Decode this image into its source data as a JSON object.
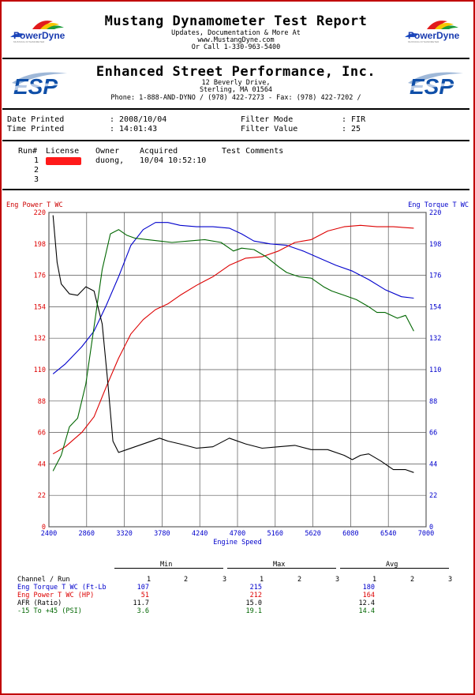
{
  "header": {
    "title": "Mustang Dynamometer Test Report",
    "line1": "Updates, Documentation & More At",
    "line2": "www.MustangDyne.com",
    "line3": "Or Call 1-330-963-5400",
    "logo_text": "PowerDyne"
  },
  "shop": {
    "name": "Enhanced Street Performance, Inc.",
    "address1": "12 Beverly Drive,",
    "address2": "Sterling, MA  01564",
    "phone": "Phone: 1-888-AND-DYNO / (978) 422-7273 - Fax: (978) 422-7202 /",
    "logo_text": "ESP"
  },
  "info": {
    "date_label": "Date Printed",
    "date_value": ": 2008/10/04",
    "time_label": "Time Printed",
    "time_value": ": 14:01:43",
    "filter_mode_label": "Filter Mode",
    "filter_mode_value": ": FIR",
    "filter_value_label": "Filter Value",
    "filter_value_value": ": 25"
  },
  "runs": {
    "headers": [
      "Run#",
      "License",
      "Owner",
      "Acquired",
      "Test Comments"
    ],
    "rows": [
      {
        "run": "1",
        "owner": "duong,",
        "acquired": "10/04 10:52:10"
      },
      {
        "run": "2"
      },
      {
        "run": "3"
      }
    ]
  },
  "chart_data": {
    "type": "line",
    "xlabel": "Engine Speed",
    "ylabel_left": "Eng Power T WC",
    "ylabel_right": "Eng Torque T WC",
    "xlim": [
      2400,
      7000
    ],
    "ylim": [
      0,
      220
    ],
    "x_ticks": [
      2400,
      2860,
      3320,
      3780,
      4240,
      4700,
      5160,
      5620,
      6080,
      6540,
      7000
    ],
    "y_ticks": [
      0,
      22,
      44,
      66,
      88,
      110,
      132,
      154,
      176,
      198,
      220
    ],
    "grid": true,
    "colors": {
      "power": "#dd0000",
      "torque": "#0000cc",
      "afr": "#000000",
      "boost": "#006600",
      "axis_text": "#0000cc"
    },
    "series": [
      {
        "name": "Eng Torque T WC (Ft-Lb)",
        "color": "#0000cc",
        "x": [
          2450,
          2600,
          2800,
          2950,
          3100,
          3250,
          3400,
          3550,
          3700,
          3850,
          4000,
          4200,
          4400,
          4600,
          4750,
          4900,
          5100,
          5300,
          5500,
          5700,
          5900,
          6100,
          6300,
          6500,
          6700,
          6850
        ],
        "y": [
          107,
          114,
          126,
          137,
          155,
          175,
          197,
          208,
          213,
          213,
          211,
          210,
          210,
          209,
          205,
          200,
          198,
          197,
          193,
          188,
          183,
          179,
          173,
          166,
          161,
          160
        ]
      },
      {
        "name": "Eng Power T WC (HP)",
        "color": "#dd0000",
        "x": [
          2450,
          2600,
          2800,
          2950,
          3100,
          3250,
          3400,
          3550,
          3700,
          3850,
          4000,
          4200,
          4400,
          4600,
          4800,
          5000,
          5200,
          5400,
          5600,
          5800,
          6000,
          6200,
          6400,
          6600,
          6850
        ],
        "y": [
          51,
          56,
          66,
          77,
          98,
          118,
          135,
          145,
          152,
          156,
          162,
          169,
          175,
          183,
          188,
          189,
          193,
          199,
          201,
          207,
          210,
          211,
          210,
          210,
          209
        ]
      },
      {
        "name": "AFR (Ratio)",
        "color": "#000000",
        "x": [
          2450,
          2500,
          2550,
          2650,
          2750,
          2850,
          2950,
          3050,
          3120,
          3180,
          3250,
          3350,
          3450,
          3600,
          3750,
          3850,
          4000,
          4200,
          4400,
          4600,
          4800,
          5000,
          5200,
          5400,
          5600,
          5800,
          6000,
          6100,
          6200,
          6300,
          6450,
          6600,
          6750,
          6850
        ],
        "y": [
          218,
          185,
          170,
          163,
          162,
          168,
          165,
          142,
          100,
          60,
          52,
          54,
          56,
          59,
          62,
          60,
          58,
          55,
          56,
          62,
          58,
          55,
          56,
          57,
          54,
          54,
          50,
          47,
          50,
          51,
          46,
          40,
          40,
          38
        ]
      },
      {
        "name": "-15 To +45 (PSI)",
        "color": "#006600",
        "x": [
          2450,
          2550,
          2650,
          2750,
          2850,
          2950,
          3050,
          3150,
          3250,
          3350,
          3450,
          3600,
          3750,
          3900,
          4100,
          4300,
          4500,
          4650,
          4750,
          4900,
          5050,
          5200,
          5300,
          5450,
          5600,
          5750,
          5850,
          6000,
          6150,
          6300,
          6400,
          6500,
          6650,
          6750,
          6850
        ],
        "y": [
          39,
          50,
          70,
          76,
          100,
          140,
          180,
          205,
          208,
          204,
          202,
          201,
          200,
          199,
          200,
          201,
          199,
          193,
          195,
          194,
          189,
          182,
          178,
          175,
          174,
          168,
          165,
          162,
          159,
          154,
          150,
          150,
          146,
          148,
          137
        ]
      }
    ]
  },
  "summary": {
    "groups": [
      "Min",
      "Max",
      "Avg"
    ],
    "run_numbers": [
      "1",
      "2",
      "3"
    ],
    "header_label": "Channel / Run",
    "rows": [
      {
        "label": "Eng Torque T WC (Ft-Lb",
        "color": "#0000cc",
        "min": "107",
        "max": "215",
        "avg": "180"
      },
      {
        "label": "Eng Power T WC (HP)",
        "color": "#dd0000",
        "min": "51",
        "max": "212",
        "avg": "164"
      },
      {
        "label": "AFR (Ratio)",
        "color": "#000000",
        "min": "11.7",
        "max": "15.0",
        "avg": "12.4"
      },
      {
        "label": "-15 To +45 (PSI)",
        "color": "#006600",
        "min": "3.6",
        "max": "19.1",
        "avg": "14.4"
      }
    ]
  }
}
